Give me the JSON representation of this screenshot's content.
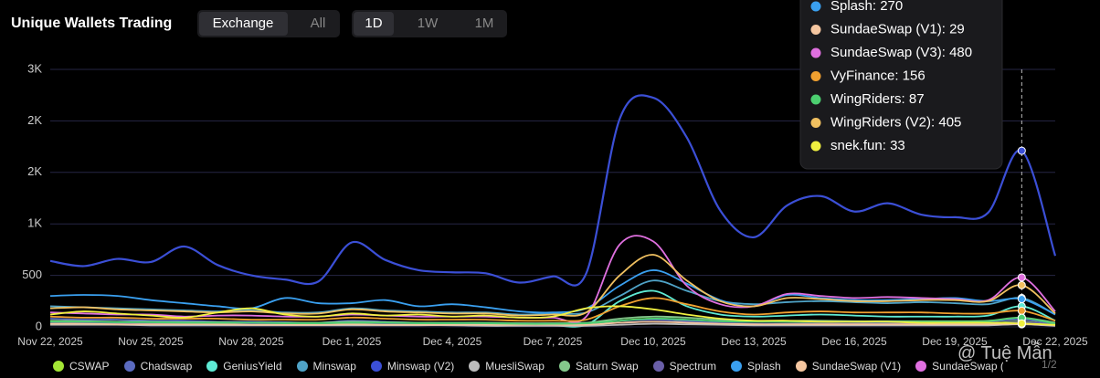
{
  "header": {
    "title": "Unique Wallets Trading",
    "filters": [
      "Exchange",
      "All"
    ],
    "periods": [
      "1D",
      "1W",
      "1M"
    ]
  },
  "chart_data": {
    "type": "line",
    "categories": [
      "Nov 22, 2025",
      null,
      null,
      "Nov 25, 2025",
      null,
      null,
      "Nov 28, 2025",
      null,
      null,
      "Dec 1, 2025",
      null,
      null,
      "Dec 4, 2025",
      null,
      null,
      "Dec 7, 2025",
      null,
      null,
      "Dec 10, 2025",
      null,
      null,
      "Dec 13, 2025",
      null,
      null,
      "Dec 16, 2025",
      null,
      null,
      "Dec 19, 2025",
      null,
      null,
      "Dec 22, 2025"
    ],
    "ylim": [
      0,
      2500
    ],
    "yticks": [
      0,
      500,
      {
        "value": 1000,
        "label": "1K"
      },
      {
        "value": 1500,
        "label": "2K"
      },
      {
        "value": 2000,
        "label": "2K"
      },
      {
        "value": 2500,
        "label": "3K"
      }
    ],
    "grid": true,
    "series": [
      {
        "name": "CSWAP",
        "color": "#a3e635",
        "values": [
          40,
          35,
          30,
          30,
          25,
          30,
          30,
          25,
          20,
          30,
          25,
          20,
          20,
          25,
          20,
          20,
          25,
          60,
          80,
          50,
          30,
          25,
          30,
          30,
          25,
          25,
          30,
          30,
          35,
          50,
          20
        ]
      },
      {
        "name": "Chadswap",
        "color": "#5b6bc0",
        "values": [
          80,
          70,
          70,
          60,
          60,
          50,
          50,
          45,
          40,
          60,
          50,
          40,
          40,
          40,
          35,
          35,
          40,
          60,
          70,
          60,
          50,
          50,
          50,
          45,
          45,
          40,
          40,
          40,
          50,
          70,
          30
        ]
      },
      {
        "name": "GeniusYield",
        "color": "#5eead4",
        "values": [
          30,
          30,
          25,
          25,
          20,
          25,
          20,
          20,
          20,
          25,
          20,
          20,
          20,
          20,
          15,
          15,
          20,
          250,
          350,
          200,
          120,
          100,
          110,
          120,
          110,
          100,
          100,
          100,
          110,
          200,
          60
        ]
      },
      {
        "name": "Minswap",
        "color": "#4fa3c7",
        "values": [
          200,
          190,
          180,
          170,
          160,
          150,
          160,
          140,
          140,
          180,
          160,
          150,
          140,
          140,
          120,
          130,
          140,
          300,
          450,
          350,
          250,
          220,
          240,
          250,
          240,
          230,
          240,
          230,
          220,
          280,
          120
        ]
      },
      {
        "name": "Minswap (V2)",
        "color": "#3b4fd6",
        "values": [
          640,
          590,
          660,
          630,
          780,
          600,
          500,
          460,
          440,
          820,
          650,
          550,
          530,
          520,
          430,
          490,
          520,
          2020,
          2225,
          1840,
          1130,
          870,
          1180,
          1270,
          1120,
          1200,
          1090,
          1065,
          1110,
          1710,
          690
        ]
      },
      {
        "name": "MuesliSwap",
        "color": "#bbbbbb",
        "values": [
          20,
          20,
          20,
          15,
          15,
          15,
          15,
          15,
          15,
          15,
          15,
          15,
          15,
          10,
          10,
          10,
          10,
          20,
          30,
          25,
          20,
          15,
          15,
          15,
          15,
          15,
          15,
          15,
          15,
          25,
          10
        ]
      },
      {
        "name": "Saturn Swap",
        "color": "#84c98b",
        "values": [
          60,
          55,
          50,
          50,
          45,
          45,
          40,
          40,
          40,
          50,
          45,
          40,
          40,
          40,
          35,
          35,
          40,
          80,
          100,
          90,
          70,
          60,
          60,
          60,
          55,
          55,
          55,
          55,
          60,
          90,
          40
        ]
      },
      {
        "name": "Spectrum",
        "color": "#6a5fa8",
        "values": [
          40,
          40,
          35,
          35,
          30,
          30,
          30,
          30,
          25,
          30,
          30,
          25,
          25,
          25,
          20,
          20,
          25,
          40,
          50,
          45,
          35,
          30,
          30,
          30,
          30,
          30,
          30,
          30,
          30,
          45,
          20
        ]
      },
      {
        "name": "Splash",
        "color": "#3aa0f0",
        "values": [
          300,
          310,
          300,
          260,
          230,
          200,
          180,
          280,
          230,
          230,
          260,
          200,
          220,
          190,
          150,
          140,
          180,
          400,
          550,
          420,
          260,
          200,
          310,
          280,
          260,
          260,
          270,
          280,
          250,
          270,
          120
        ]
      },
      {
        "name": "SundaeSwap (V1)",
        "color": "#f5c6a0",
        "values": [
          30,
          30,
          25,
          25,
          25,
          25,
          20,
          20,
          20,
          25,
          20,
          20,
          20,
          20,
          20,
          20,
          20,
          40,
          50,
          40,
          30,
          25,
          25,
          25,
          25,
          25,
          25,
          25,
          25,
          29,
          15
        ]
      },
      {
        "name": "SundaeSwap (V3)",
        "color": "#e070e0",
        "values": [
          140,
          130,
          120,
          120,
          100,
          110,
          110,
          100,
          100,
          120,
          110,
          100,
          100,
          100,
          90,
          90,
          100,
          800,
          830,
          400,
          220,
          200,
          320,
          300,
          280,
          290,
          280,
          270,
          260,
          480,
          150
        ]
      },
      {
        "name": "VyFinance",
        "color": "#f0a030",
        "values": [
          100,
          90,
          90,
          80,
          80,
          80,
          70,
          70,
          70,
          90,
          80,
          70,
          70,
          70,
          60,
          60,
          70,
          200,
          280,
          220,
          150,
          120,
          140,
          150,
          140,
          140,
          140,
          130,
          130,
          156,
          60
        ]
      },
      {
        "name": "WingRiders",
        "color": "#4ccf70",
        "values": [
          50,
          50,
          45,
          45,
          40,
          40,
          40,
          35,
          35,
          40,
          40,
          35,
          35,
          35,
          30,
          30,
          35,
          60,
          80,
          70,
          55,
          50,
          50,
          50,
          50,
          50,
          50,
          50,
          55,
          87,
          30
        ]
      },
      {
        "name": "WingRiders (V2)",
        "color": "#f0c060",
        "values": [
          180,
          190,
          170,
          160,
          150,
          140,
          150,
          130,
          130,
          170,
          150,
          140,
          130,
          130,
          110,
          120,
          140,
          500,
          700,
          450,
          250,
          200,
          280,
          270,
          250,
          250,
          260,
          260,
          250,
          405,
          130
        ]
      },
      {
        "name": "snek.fun",
        "color": "#f0f040",
        "values": [
          120,
          150,
          130,
          110,
          90,
          140,
          180,
          120,
          100,
          130,
          110,
          120,
          100,
          110,
          90,
          100,
          180,
          200,
          170,
          120,
          80,
          60,
          60,
          50,
          50,
          50,
          40,
          40,
          40,
          33,
          20
        ]
      }
    ],
    "legend_pager": "1/2"
  },
  "watermark": "@ Tuệ Mẫn"
}
